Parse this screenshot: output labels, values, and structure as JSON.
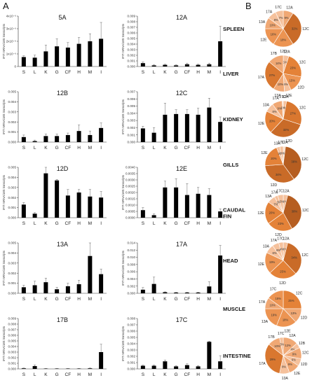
{
  "panel_labels": {
    "a": "A",
    "b": "B"
  },
  "colors": {
    "bar": "#000000",
    "axis": "#333333",
    "pie_palette": [
      "#f9dcc4",
      "#f5c19c",
      "#f0a874",
      "#ec9452",
      "#e48238",
      "#d9772f",
      "#c96b28",
      "#b65e21"
    ]
  },
  "chart_data": [
    {
      "id": "5A",
      "type": "bar",
      "title": "5A",
      "ylabel": "IFIT mRNA/18S transcripts",
      "categories": [
        "S",
        "L",
        "K",
        "G",
        "CF",
        "H",
        "M",
        "I"
      ],
      "ylim": [
        0,
        4e-06
      ],
      "yticks": [
        0,
        1e-06,
        2e-06,
        3e-06,
        4e-06
      ],
      "ytick_labels": [
        "0",
        "1x10⁻⁶",
        "2x10⁻⁶",
        "3x10⁻⁶",
        "4x10⁻⁶"
      ],
      "values": [
        7.5e-07,
        7e-07,
        1.2e-06,
        1.6e-06,
        1.5e-06,
        1.8e-06,
        2e-06,
        2.2e-06
      ],
      "errors": [
        1e-07,
        2e-07,
        5e-07,
        6e-07,
        4e-07,
        5e-07,
        6e-07,
        1.3e-06
      ]
    },
    {
      "id": "12A",
      "type": "bar",
      "title": "12A",
      "ylabel": "IFIT mRNA/18S transcripts",
      "categories": [
        "S",
        "L",
        "K",
        "G",
        "CF",
        "H",
        "M",
        "I"
      ],
      "ylim": [
        0,
        0.009
      ],
      "yticks": [
        0,
        0.001,
        0.002,
        0.003,
        0.004,
        0.005,
        0.006,
        0.007,
        0.008,
        0.009
      ],
      "ytick_labels": [
        "0.000",
        "0.001",
        "0.002",
        "0.003",
        "0.004",
        "0.005",
        "0.006",
        "0.007",
        "0.008",
        "0.009"
      ],
      "values": [
        0.0006,
        0.0002,
        0.0003,
        0.0002,
        0.0004,
        0.0003,
        0.0004,
        0.0045
      ],
      "errors": [
        0.0002,
        0.0001,
        0.0001,
        0.0001,
        0.0002,
        0.0001,
        0.0002,
        0.0027
      ]
    },
    {
      "id": "12B",
      "type": "bar",
      "title": "12B",
      "ylabel": "IFIT mRNA/18S transcripts",
      "categories": [
        "S",
        "L",
        "K",
        "G",
        "CF",
        "H",
        "M",
        "I"
      ],
      "ylim": [
        0,
        0.005
      ],
      "yticks": [
        0,
        0.001,
        0.002,
        0.003,
        0.004,
        0.005
      ],
      "ytick_labels": [
        "0.000",
        "0.001",
        "0.002",
        "0.003",
        "0.004",
        "0.005"
      ],
      "values": [
        0.0005,
        0.0001,
        0.0006,
        0.0006,
        0.0007,
        0.0011,
        0.0007,
        0.0014
      ],
      "errors": [
        0.0002,
        0.0001,
        0.0002,
        0.0002,
        0.0002,
        0.0006,
        0.0004,
        0.0005
      ]
    },
    {
      "id": "12C",
      "type": "bar",
      "title": "12C",
      "ylabel": "IFIT mRNA/18S transcripts",
      "categories": [
        "S",
        "L",
        "K",
        "G",
        "CF",
        "H",
        "M",
        "I"
      ],
      "ylim": [
        0,
        0.007
      ],
      "yticks": [
        0,
        0.001,
        0.002,
        0.003,
        0.004,
        0.005,
        0.006,
        0.007
      ],
      "ytick_labels": [
        "0.000",
        "0.001",
        "0.002",
        "0.003",
        "0.004",
        "0.005",
        "0.006",
        "0.007"
      ],
      "values": [
        0.0019,
        0.0013,
        0.0038,
        0.0039,
        0.0039,
        0.0038,
        0.0048,
        0.0028
      ],
      "errors": [
        0.0003,
        0.0007,
        0.0016,
        0.0006,
        0.0006,
        0.0009,
        0.0013,
        0.0007
      ]
    },
    {
      "id": "12D",
      "type": "bar",
      "title": "12D",
      "ylabel": "IFIT mRNA/18S transcripts",
      "categories": [
        "S",
        "L",
        "K",
        "G",
        "CF",
        "H",
        "M",
        "I"
      ],
      "ylim": [
        0,
        0.005
      ],
      "yticks": [
        0,
        0.001,
        0.002,
        0.003,
        0.004,
        0.005
      ],
      "ytick_labels": [
        "0.000",
        "0.001",
        "0.002",
        "0.003",
        "0.004",
        "0.005"
      ],
      "values": [
        0.0013,
        0.0004,
        0.0044,
        0.0037,
        0.0022,
        0.0025,
        0.0021,
        0.002
      ],
      "errors": [
        0.0002,
        0.0001,
        0.0008,
        0.0001,
        0.0006,
        0.0003,
        0.0007,
        0.0006
      ]
    },
    {
      "id": "12E",
      "type": "bar",
      "title": "12E",
      "ylabel": "IFIT mRNA/18S transcripts",
      "categories": [
        "S",
        "L",
        "K",
        "G",
        "CF",
        "H",
        "M",
        "I"
      ],
      "ylim": [
        0,
        0.004
      ],
      "yticks": [
        0,
        0.0005,
        0.001,
        0.0015,
        0.002,
        0.0025,
        0.003,
        0.0035,
        0.004
      ],
      "ytick_labels": [
        "0.0000",
        "0.0005",
        "0.0010",
        "0.0015",
        "0.0020",
        "0.0025",
        "0.0030",
        "0.0035",
        "0.0040"
      ],
      "values": [
        0.0006,
        0.0002,
        0.0024,
        0.0024,
        0.0018,
        0.0019,
        0.0018,
        0.0005
      ],
      "errors": [
        0.0002,
        0.0001,
        0.0005,
        0.0007,
        0.0009,
        0.0005,
        0.0005,
        0.0002
      ]
    },
    {
      "id": "13A",
      "type": "bar",
      "title": "13A",
      "ylabel": "IFIT mRNA/18S transcripts",
      "categories": [
        "S",
        "L",
        "K",
        "G",
        "CF",
        "H",
        "M",
        "I"
      ],
      "ylim": [
        0,
        0.005
      ],
      "yticks": [
        0,
        0.001,
        0.002,
        0.003,
        0.004,
        0.005
      ],
      "ytick_labels": [
        "0.000",
        "0.001",
        "0.002",
        "0.003",
        "0.004",
        "0.005"
      ],
      "values": [
        0.0006,
        0.0008,
        0.0011,
        0.0004,
        0.0007,
        0.0009,
        0.0037,
        0.0019
      ],
      "errors": [
        0.0002,
        0.0004,
        0.0004,
        0.0002,
        0.0003,
        0.0004,
        0.0031,
        0.0005
      ]
    },
    {
      "id": "17A",
      "type": "bar",
      "title": "17A",
      "ylabel": "IFIT mRNA/18S transcripts",
      "categories": [
        "S",
        "L",
        "K",
        "G",
        "CF",
        "H",
        "M",
        "I"
      ],
      "ylim": [
        0,
        0.014
      ],
      "yticks": [
        0,
        0.002,
        0.004,
        0.006,
        0.008,
        0.01,
        0.012,
        0.014
      ],
      "ytick_labels": [
        "0.000",
        "0.002",
        "0.004",
        "0.006",
        "0.008",
        "0.010",
        "0.012",
        "0.014"
      ],
      "values": [
        0.001,
        0.0026,
        0.0003,
        0.0002,
        0.0002,
        0.0002,
        0.0019,
        0.0105
      ],
      "errors": [
        0.0006,
        0.0019,
        0.0001,
        0.0001,
        0.0001,
        0.0001,
        0.0013,
        0.0028
      ]
    },
    {
      "id": "17B",
      "type": "bar",
      "title": "17B",
      "ylabel": "IFIT mRNA/18S transcripts",
      "categories": [
        "S",
        "L",
        "K",
        "G",
        "CF",
        "H",
        "M",
        "I"
      ],
      "ylim": [
        0,
        0.009
      ],
      "yticks": [
        0,
        0.001,
        0.002,
        0.003,
        0.004,
        0.005,
        0.006,
        0.007,
        0.008,
        0.009
      ],
      "ytick_labels": [
        "0.000",
        "0.001",
        "0.002",
        "0.003",
        "0.004",
        "0.005",
        "0.006",
        "0.007",
        "0.008",
        "0.009"
      ],
      "values": [
        0.0001,
        0.0005,
        5e-05,
        5e-05,
        5e-05,
        5e-05,
        0.0001,
        0.003
      ],
      "errors": [
        5e-05,
        0.0002,
        3e-05,
        3e-05,
        3e-05,
        3e-05,
        5e-05,
        0.0014
      ]
    },
    {
      "id": "17C",
      "type": "bar",
      "title": "17C",
      "ylabel": "IFIT mRNA/18S transcripts",
      "categories": [
        "S",
        "L",
        "K",
        "G",
        "CF",
        "H",
        "M",
        "I"
      ],
      "ylim": [
        0,
        0.008
      ],
      "yticks": [
        0,
        0.001,
        0.002,
        0.003,
        0.004,
        0.005,
        0.006,
        0.007,
        0.008
      ],
      "ytick_labels": [
        "0.000",
        "0.001",
        "0.002",
        "0.003",
        "0.004",
        "0.005",
        "0.006",
        "0.007",
        "0.008"
      ],
      "values": [
        0.0005,
        0.0005,
        0.0012,
        0.0004,
        0.0006,
        0.0004,
        0.0043,
        0.0012
      ],
      "errors": [
        0.0001,
        0.0001,
        0.0002,
        0.0001,
        0.0002,
        0.0001,
        0.0001,
        0.0009
      ]
    },
    {
      "id": "spleen",
      "type": "pie",
      "title": "SPLEEN",
      "slices": [
        {
          "label": "12A",
          "value": 9
        },
        {
          "label": "12C",
          "value": 32
        },
        {
          "label": "12D",
          "value": 18
        },
        {
          "label": "12E",
          "value": 16
        },
        {
          "label": "13A",
          "value": 10
        },
        {
          "label": "17A",
          "value": 8
        },
        {
          "label": "17C",
          "value": 7
        }
      ],
      "value_labels": [
        "9%",
        "32%",
        "18%",
        "16%",
        "10%",
        "8%",
        "7%"
      ]
    },
    {
      "id": "liver",
      "type": "pie",
      "title": "LIVER",
      "slices": [
        {
          "label": "12A",
          "value": 5
        },
        {
          "label": "12C",
          "value": 23
        },
        {
          "label": "12D",
          "value": 15
        },
        {
          "label": "12E",
          "value": 6
        },
        {
          "label": "13A",
          "value": 10
        },
        {
          "label": "17A",
          "value": 27
        },
        {
          "label": "17B",
          "value": 14
        }
      ],
      "value_labels": [
        "5%",
        "23%",
        "15%",
        "6%",
        "10%",
        "27%",
        "14%"
      ]
    },
    {
      "id": "kidney",
      "type": "pie",
      "title": "KIDNEY",
      "slices": [
        {
          "label": "12A",
          "value": 3
        },
        {
          "label": "12C",
          "value": 27
        },
        {
          "label": "12D",
          "value": 32
        },
        {
          "label": "12E",
          "value": 20
        },
        {
          "label": "13A",
          "value": 8
        },
        {
          "label": "17A",
          "value": 9
        },
        {
          "label": "17C",
          "value": 1
        }
      ],
      "value_labels": [
        "3%",
        "27%",
        "32%",
        "20%",
        "8%",
        "9%",
        "1%"
      ]
    },
    {
      "id": "gills",
      "type": "pie",
      "title": "GILLS",
      "slices": [
        {
          "label": "12A",
          "value": 2
        },
        {
          "label": "12C",
          "value": 38
        },
        {
          "label": "12D",
          "value": 34
        },
        {
          "label": "12E",
          "value": 20
        },
        {
          "label": "13A",
          "value": 3
        },
        {
          "label": "17C",
          "value": 3
        }
      ],
      "value_labels": [
        "2%",
        "38%",
        "34%",
        "20%",
        "3%",
        "3%"
      ]
    },
    {
      "id": "caudal_fin",
      "type": "pie",
      "title": "CAUDAL FIN",
      "slices": [
        {
          "label": "12A",
          "value": 4
        },
        {
          "label": "12C",
          "value": 38
        },
        {
          "label": "12D",
          "value": 23
        },
        {
          "label": "12E",
          "value": 20
        },
        {
          "label": "13A",
          "value": 7
        },
        {
          "label": "17A",
          "value": 3
        },
        {
          "label": "17C",
          "value": 5
        }
      ],
      "value_labels": [
        "4%",
        "38%",
        "23%",
        "20%",
        "7%",
        "3%",
        "5%"
      ]
    },
    {
      "id": "head",
      "type": "pie",
      "title": "HEAD",
      "slices": [
        {
          "label": "12A",
          "value": 4
        },
        {
          "label": "12C",
          "value": 34
        },
        {
          "label": "12D",
          "value": 25
        },
        {
          "label": "12E",
          "value": 19
        },
        {
          "label": "13A",
          "value": 8
        },
        {
          "label": "17A",
          "value": 6
        },
        {
          "label": "17C",
          "value": 4
        }
      ],
      "value_labels": [
        "4%",
        "34%",
        "25%",
        "19%",
        "8%",
        "6%",
        "4%"
      ]
    },
    {
      "id": "muscle",
      "type": "pie",
      "title": "MUSCLE",
      "slices": [
        {
          "label": "12C",
          "value": 25
        },
        {
          "label": "12D",
          "value": 13
        },
        {
          "label": "12E",
          "value": 18
        },
        {
          "label": "13A",
          "value": 19
        },
        {
          "label": "17A",
          "value": 10
        },
        {
          "label": "17C",
          "value": 15
        }
      ],
      "value_labels": [
        "25%",
        "13%",
        "18%",
        "19%",
        "10%",
        "15%"
      ]
    },
    {
      "id": "intestine",
      "type": "pie",
      "title": "INTESTINE",
      "slices": [
        {
          "label": "12A",
          "value": 12
        },
        {
          "label": "12B",
          "value": 4
        },
        {
          "label": "12C",
          "value": 9
        },
        {
          "label": "12D",
          "value": 6
        },
        {
          "label": "12E",
          "value": 9
        },
        {
          "label": "13A",
          "value": 8
        },
        {
          "label": "17A",
          "value": 29
        },
        {
          "label": "17B",
          "value": 10
        },
        {
          "label": "17C",
          "value": 3
        }
      ],
      "value_labels": [
        "12%",
        "4%",
        "9%",
        "6%",
        "9%",
        "8%",
        "29%",
        "10%",
        "3%"
      ]
    }
  ]
}
